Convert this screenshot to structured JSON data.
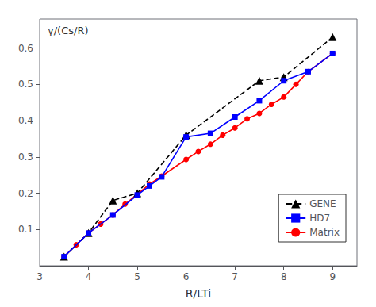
{
  "chart_data": {
    "type": "line",
    "xlabel": "R/LTi",
    "ylabel": "γ/(Cs/R)",
    "xlim": [
      3.0,
      9.5
    ],
    "ylim": [
      0.0,
      0.68
    ],
    "xticks": [
      3,
      4,
      5,
      6,
      7,
      8,
      9
    ],
    "yticks": [
      0.1,
      0.2,
      0.3,
      0.4,
      0.5,
      0.6
    ],
    "grid": false,
    "legend": "lower right",
    "series": [
      {
        "name": "GENE",
        "color": "black",
        "marker": "triangle",
        "line_style": "dashed",
        "x": [
          3.5,
          4.0,
          4.5,
          5.0,
          6.0,
          7.5,
          8.0,
          9.0
        ],
        "values": [
          0.025,
          0.09,
          0.18,
          0.2,
          0.36,
          0.51,
          0.52,
          0.63
        ]
      },
      {
        "name": "HD7",
        "color": "blue",
        "marker": "square",
        "line_style": "solid",
        "x": [
          3.5,
          4.0,
          4.5,
          5.0,
          5.25,
          5.5,
          6.0,
          6.5,
          7.0,
          7.5,
          8.0,
          8.5,
          9.0
        ],
        "values": [
          0.025,
          0.09,
          0.14,
          0.195,
          0.22,
          0.245,
          0.355,
          0.365,
          0.41,
          0.455,
          0.51,
          0.535,
          0.585
        ]
      },
      {
        "name": "Matrix",
        "color": "red",
        "marker": "circle",
        "line_style": "solid",
        "x": [
          3.5,
          3.75,
          4.0,
          4.25,
          4.5,
          4.75,
          5.0,
          5.25,
          5.5,
          6.0,
          6.25,
          6.5,
          6.75,
          7.0,
          7.25,
          7.5,
          7.75,
          8.0,
          8.25,
          8.5,
          9.0
        ],
        "values": [
          0.025,
          0.058,
          0.09,
          0.115,
          0.14,
          0.17,
          0.197,
          0.225,
          0.247,
          0.293,
          0.315,
          0.335,
          0.36,
          0.38,
          0.405,
          0.42,
          0.445,
          0.465,
          0.5,
          0.535,
          0.585
        ]
      }
    ]
  }
}
